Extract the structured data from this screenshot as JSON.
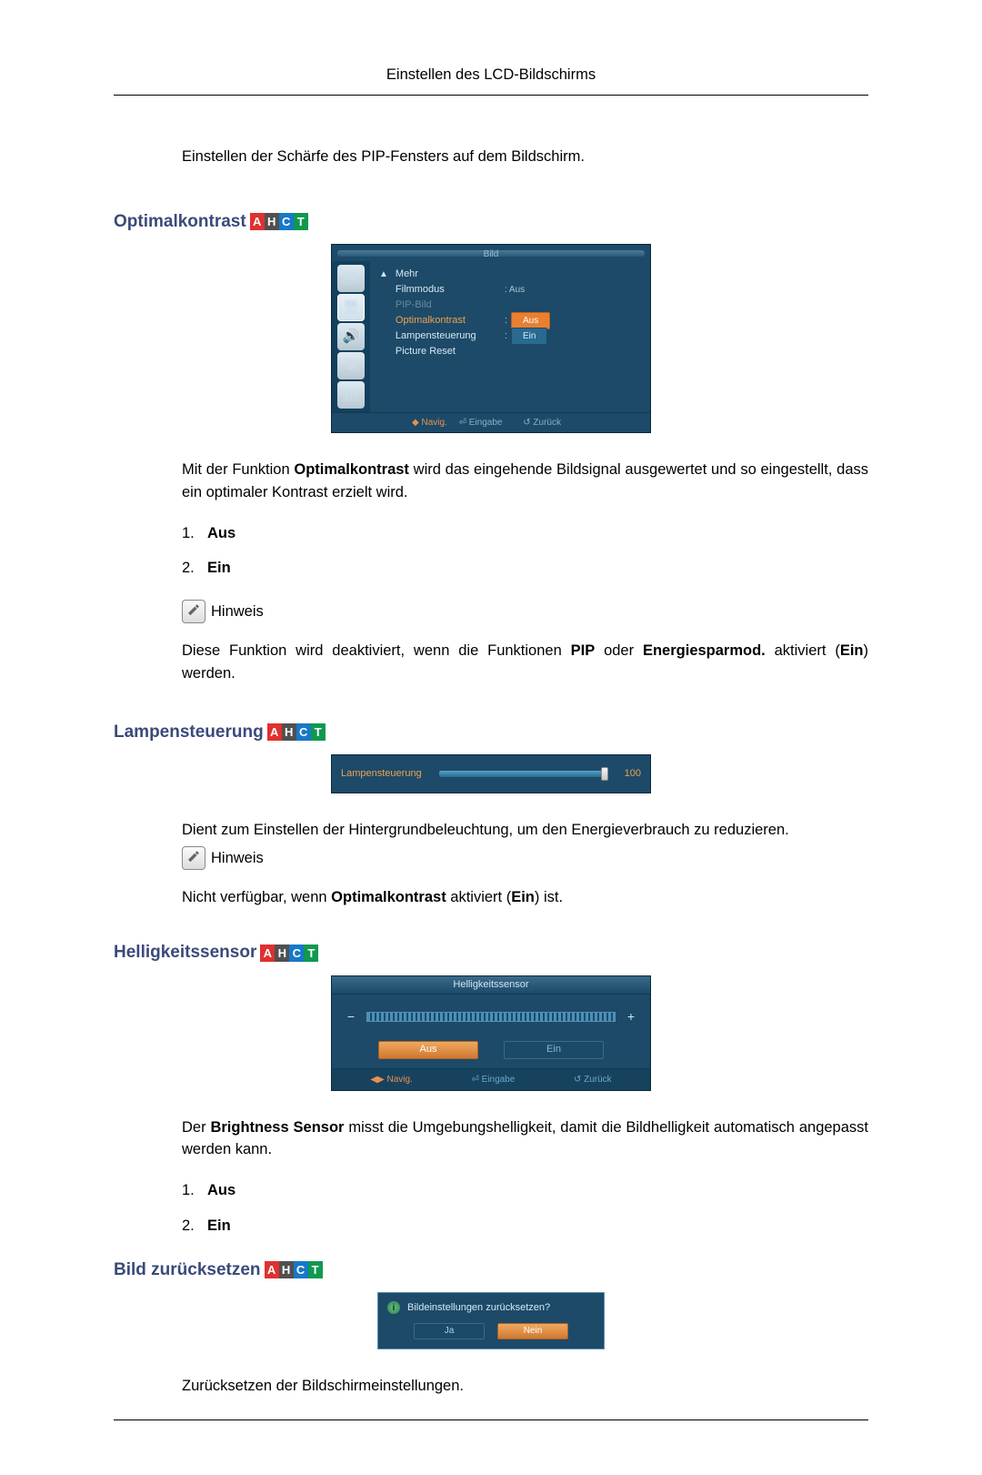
{
  "header": {
    "title": "Einstellen des LCD-Bildschirms"
  },
  "intro": "Einstellen der Schärfe des PIP-Fensters auf dem Bildschirm.",
  "badges": {
    "items": [
      "A",
      "H",
      "C",
      "T"
    ],
    "colors": [
      "#e03030",
      "#505050",
      "#1878c8",
      "#109850"
    ],
    "fg": [
      "#ffffff",
      "#ffffff",
      "#ffffff",
      "#ffffff"
    ]
  },
  "sections": {
    "opt": {
      "title": "Optimalkontrast",
      "desc_pre": "Mit der Funktion ",
      "desc_bold": "Optimalkontrast",
      "desc_post": " wird das eingehende Bildsignal ausgewertet und so eingestellt, dass ein optimaler Kontrast erzielt wird.",
      "list": [
        "Aus",
        "Ein"
      ],
      "hinweis": "Hinweis",
      "note_pre": "Diese Funktion wird deaktiviert, wenn die Funktionen ",
      "note_b1": "PIP",
      "note_mid": " oder ",
      "note_b2": "Energiesparmod.",
      "note_post": " aktiviert (",
      "note_b3": "Ein",
      "note_end": ") werden."
    },
    "lamp": {
      "title": "Lampensteuerung",
      "desc": "Dient zum Einstellen der Hintergrundbeleuchtung, um den Energieverbrauch zu reduzieren.",
      "hinweis": "Hinweis",
      "note_pre": "Nicht verfügbar, wenn ",
      "note_b1": "Optimalkontrast",
      "note_mid": " aktiviert (",
      "note_b2": "Ein",
      "note_end": ") ist."
    },
    "hell": {
      "title": "Helligkeitssensor",
      "desc_pre": "Der ",
      "desc_b": "Brightness Sensor",
      "desc_post": " misst die Umgebungshelligkeit, damit die Bildhelligkeit automatisch angepasst werden kann.",
      "list": [
        "Aus",
        "Ein"
      ]
    },
    "reset": {
      "title": "Bild zurücksetzen",
      "desc": "Zurücksetzen der Bildschirmeinstellungen."
    }
  },
  "osd1": {
    "title": "Bild",
    "items": {
      "mehr": "Mehr",
      "film": "Filmmodus",
      "film_val": ": Aus",
      "pip": "PIP-Bild",
      "opt": "Optimalkontrast",
      "opt_val": "Aus",
      "lamp": "Lampensteuerung",
      "lamp_val": "Ein",
      "preset": "Picture Reset"
    },
    "foot": {
      "nav": "◆ Navig.",
      "eing": "⏎ Eingabe",
      "zur": "↺ Zurück"
    },
    "colors": {
      "bg": "#1c4a68",
      "hl": "#f0a050",
      "pill_orange": "#e88030",
      "pill_blue": "#2a6a90"
    }
  },
  "osd2": {
    "label": "Lampensteuerung",
    "value": "100",
    "slider_percent": 100,
    "colors": {
      "bg": "#1c4a68",
      "label": "#f0a050"
    }
  },
  "osd3": {
    "title": "Helligkeitssensor",
    "minus": "−",
    "plus": "+",
    "btn_aus": "Aus",
    "btn_ein": "Ein",
    "foot": {
      "nav": "◀▶ Navig.",
      "eing": "⏎ Eingabe",
      "zur": "↺ Zurück"
    },
    "slider_fill": 100
  },
  "osd4": {
    "question": "Bildeinstellungen zurücksetzen?",
    "ja": "Ja",
    "nein": "Nein"
  }
}
